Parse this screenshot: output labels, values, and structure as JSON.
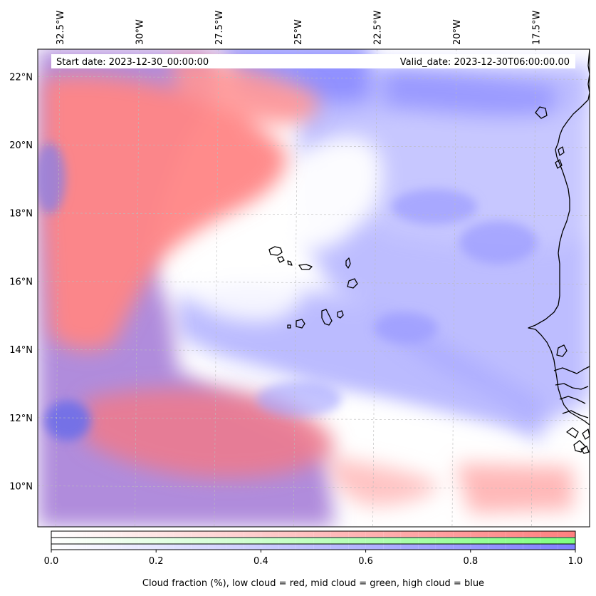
{
  "map": {
    "extent": {
      "lon_min": -33.2,
      "lon_max": -15.8,
      "lat_min": 8.8,
      "lat_max": 22.8
    },
    "lon_ticks": [
      {
        "value": -32.5,
        "label": "32.5°W"
      },
      {
        "value": -30,
        "label": "30°W"
      },
      {
        "value": -27.5,
        "label": "27.5°W"
      },
      {
        "value": -25,
        "label": "25°W"
      },
      {
        "value": -22.5,
        "label": "22.5°W"
      },
      {
        "value": -20,
        "label": "20°W"
      },
      {
        "value": -17.5,
        "label": "17.5°W"
      }
    ],
    "lat_ticks": [
      {
        "value": 22,
        "label": "22°N"
      },
      {
        "value": 20,
        "label": "20°N"
      },
      {
        "value": 18,
        "label": "18°N"
      },
      {
        "value": 16,
        "label": "16°N"
      },
      {
        "value": 14,
        "label": "14°N"
      },
      {
        "value": 12,
        "label": "12°N"
      },
      {
        "value": 10,
        "label": "10°N"
      }
    ],
    "gridlines": true,
    "start_date": "Start date: 2023-12-30_00:00:00",
    "valid_date": "Valid_date: 2023-12-30T06:00:00.00",
    "colors": {
      "low": "#ff7f7f",
      "mid": "#7fff7f",
      "high": "#7f7fff"
    }
  },
  "colorbar": {
    "ticks": [
      "0.0",
      "0.2",
      "0.4",
      "0.6",
      "0.8",
      "1.0"
    ],
    "caption": "Cloud fraction (%), low cloud = red, mid cloud = green, high cloud = blue"
  }
}
